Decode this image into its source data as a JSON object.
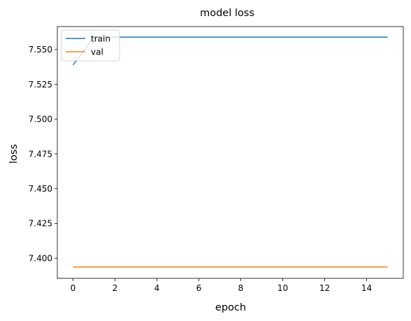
{
  "chart_data": {
    "type": "line",
    "title": "model loss",
    "xlabel": "epoch",
    "ylabel": "loss",
    "xlim": [
      -0.75,
      15.75
    ],
    "ylim": [
      7.3855,
      7.5665
    ],
    "xticks": [
      0,
      2,
      4,
      6,
      8,
      10,
      12,
      14
    ],
    "xtick_labels": [
      "0",
      "2",
      "4",
      "6",
      "8",
      "10",
      "12",
      "14"
    ],
    "yticks": [
      7.4,
      7.425,
      7.45,
      7.475,
      7.5,
      7.525,
      7.55
    ],
    "ytick_labels": [
      "7.400",
      "7.425",
      "7.450",
      "7.475",
      "7.500",
      "7.525",
      "7.550"
    ],
    "grid": false,
    "legend_position": "upper-left",
    "series": [
      {
        "name": "train",
        "color": "#1f77b4",
        "x": [
          0,
          1,
          2,
          3,
          4,
          5,
          6,
          7,
          8,
          9,
          10,
          11,
          12,
          13,
          14,
          15
        ],
        "values": [
          7.5389,
          7.5589,
          7.5589,
          7.5589,
          7.5589,
          7.5589,
          7.5589,
          7.5589,
          7.5589,
          7.5589,
          7.5589,
          7.5589,
          7.5589,
          7.5589,
          7.5589,
          7.5589
        ]
      },
      {
        "name": "val",
        "color": "#ff7f0e",
        "x": [
          0,
          1,
          2,
          3,
          4,
          5,
          6,
          7,
          8,
          9,
          10,
          11,
          12,
          13,
          14,
          15
        ],
        "values": [
          7.3937,
          7.3937,
          7.3937,
          7.3937,
          7.3937,
          7.3937,
          7.3937,
          7.3937,
          7.3937,
          7.3937,
          7.3937,
          7.3937,
          7.3937,
          7.3937,
          7.3937,
          7.3937
        ]
      }
    ]
  }
}
